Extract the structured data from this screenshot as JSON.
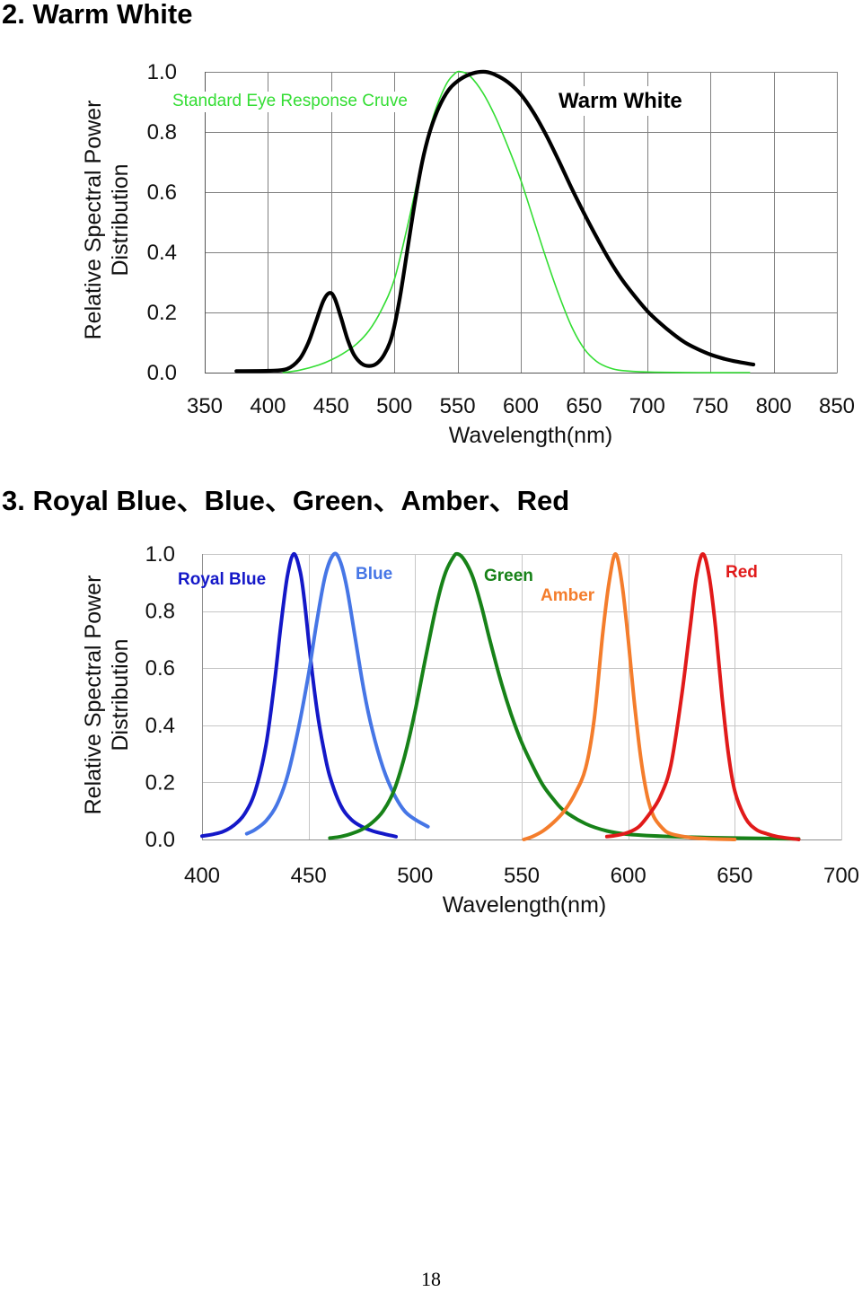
{
  "page": {
    "number": "18"
  },
  "sections": [
    {
      "heading": "2. Warm White"
    },
    {
      "heading": "3. Royal Blue、Blue、Green、Amber、Red"
    }
  ],
  "chart_data": [
    {
      "type": "line",
      "xlabel": "Wavelength(nm)",
      "ylabel": [
        "Relative Spectral Power",
        "Distribution"
      ],
      "xlim": [
        350,
        850
      ],
      "ylim": [
        0,
        1.0
      ],
      "xticks": [
        "350",
        "400",
        "450",
        "500",
        "550",
        "600",
        "650",
        "700",
        "750",
        "800",
        "850"
      ],
      "yticks": [
        "0.0",
        "0.2",
        "0.4",
        "0.6",
        "0.8",
        "1.0"
      ],
      "grid": true,
      "series": [
        {
          "name": "Standard Eye Response Cruve",
          "color": "#33dd33",
          "points": [
            [
              412,
              0
            ],
            [
              425,
              0.008
            ],
            [
              440,
              0.025
            ],
            [
              450,
              0.042
            ],
            [
              460,
              0.065
            ],
            [
              470,
              0.095
            ],
            [
              480,
              0.14
            ],
            [
              490,
              0.21
            ],
            [
              500,
              0.31
            ],
            [
              510,
              0.48
            ],
            [
              520,
              0.67
            ],
            [
              530,
              0.84
            ],
            [
              540,
              0.95
            ],
            [
              548,
              0.995
            ],
            [
              553,
              1.0
            ],
            [
              560,
              0.985
            ],
            [
              570,
              0.93
            ],
            [
              580,
              0.85
            ],
            [
              590,
              0.75
            ],
            [
              600,
              0.64
            ],
            [
              610,
              0.51
            ],
            [
              620,
              0.38
            ],
            [
              630,
              0.26
            ],
            [
              640,
              0.155
            ],
            [
              650,
              0.08
            ],
            [
              660,
              0.037
            ],
            [
              670,
              0.016
            ],
            [
              680,
              0.007
            ],
            [
              700,
              0.002
            ],
            [
              740,
              0
            ],
            [
              781,
              0
            ]
          ]
        },
        {
          "name": "Warm White",
          "color": "#000000",
          "points": [
            [
              375,
              0.005
            ],
            [
              400,
              0.006
            ],
            [
              415,
              0.012
            ],
            [
              425,
              0.045
            ],
            [
              432,
              0.1
            ],
            [
              438,
              0.17
            ],
            [
              444,
              0.24
            ],
            [
              449,
              0.265
            ],
            [
              453,
              0.245
            ],
            [
              458,
              0.18
            ],
            [
              463,
              0.11
            ],
            [
              468,
              0.06
            ],
            [
              474,
              0.03
            ],
            [
              480,
              0.022
            ],
            [
              486,
              0.03
            ],
            [
              492,
              0.06
            ],
            [
              498,
              0.12
            ],
            [
              504,
              0.24
            ],
            [
              510,
              0.4
            ],
            [
              516,
              0.56
            ],
            [
              522,
              0.7
            ],
            [
              528,
              0.8
            ],
            [
              535,
              0.88
            ],
            [
              543,
              0.94
            ],
            [
              552,
              0.975
            ],
            [
              562,
              0.995
            ],
            [
              572,
              1.0
            ],
            [
              580,
              0.99
            ],
            [
              590,
              0.965
            ],
            [
              600,
              0.925
            ],
            [
              610,
              0.865
            ],
            [
              620,
              0.79
            ],
            [
              630,
              0.705
            ],
            [
              640,
              0.615
            ],
            [
              650,
              0.53
            ],
            [
              660,
              0.45
            ],
            [
              670,
              0.375
            ],
            [
              680,
              0.31
            ],
            [
              690,
              0.255
            ],
            [
              700,
              0.205
            ],
            [
              710,
              0.165
            ],
            [
              720,
              0.13
            ],
            [
              730,
              0.1
            ],
            [
              740,
              0.078
            ],
            [
              750,
              0.06
            ],
            [
              760,
              0.047
            ],
            [
              770,
              0.037
            ],
            [
              784,
              0.027
            ]
          ]
        }
      ]
    },
    {
      "type": "line",
      "xlabel": "Wavelength(nm)",
      "ylabel": [
        "Relative Spectral Power",
        "Distribution"
      ],
      "xlim": [
        400,
        700
      ],
      "ylim": [
        0,
        1.0
      ],
      "xticks": [
        "400",
        "450",
        "500",
        "550",
        "600",
        "650",
        "700"
      ],
      "yticks": [
        "0.0",
        "0.2",
        "0.4",
        "0.6",
        "0.8",
        "1.0"
      ],
      "grid": true,
      "series": [
        {
          "name": "Royal Blue",
          "color": "#1418c8",
          "points": [
            [
              400,
              0.012
            ],
            [
              405,
              0.018
            ],
            [
              410,
              0.028
            ],
            [
              415,
              0.05
            ],
            [
              420,
              0.09
            ],
            [
              425,
              0.17
            ],
            [
              430,
              0.33
            ],
            [
              434,
              0.55
            ],
            [
              437,
              0.75
            ],
            [
              440,
              0.92
            ],
            [
              443,
              1.0
            ],
            [
              446,
              0.94
            ],
            [
              448,
              0.84
            ],
            [
              451,
              0.63
            ],
            [
              454,
              0.45
            ],
            [
              457,
              0.32
            ],
            [
              460,
              0.22
            ],
            [
              465,
              0.12
            ],
            [
              470,
              0.07
            ],
            [
              475,
              0.045
            ],
            [
              480,
              0.03
            ],
            [
              485,
              0.02
            ],
            [
              491,
              0.01
            ]
          ]
        },
        {
          "name": "Blue",
          "color": "#4676e6",
          "points": [
            [
              421,
              0.02
            ],
            [
              425,
              0.035
            ],
            [
              430,
              0.065
            ],
            [
              435,
              0.12
            ],
            [
              440,
              0.22
            ],
            [
              445,
              0.38
            ],
            [
              450,
              0.58
            ],
            [
              454,
              0.77
            ],
            [
              458,
              0.93
            ],
            [
              462,
              1.0
            ],
            [
              465,
              0.97
            ],
            [
              468,
              0.88
            ],
            [
              472,
              0.7
            ],
            [
              476,
              0.52
            ],
            [
              480,
              0.38
            ],
            [
              485,
              0.25
            ],
            [
              490,
              0.16
            ],
            [
              495,
              0.1
            ],
            [
              500,
              0.07
            ],
            [
              506,
              0.045
            ]
          ]
        },
        {
          "name": "Green",
          "color": "#178218",
          "points": [
            [
              460,
              0.005
            ],
            [
              465,
              0.01
            ],
            [
              470,
              0.02
            ],
            [
              475,
              0.035
            ],
            [
              480,
              0.06
            ],
            [
              485,
              0.1
            ],
            [
              490,
              0.17
            ],
            [
              495,
              0.29
            ],
            [
              500,
              0.45
            ],
            [
              505,
              0.64
            ],
            [
              510,
              0.82
            ],
            [
              514,
              0.93
            ],
            [
              518,
              0.99
            ],
            [
              520,
              1.0
            ],
            [
              523,
              0.98
            ],
            [
              527,
              0.92
            ],
            [
              531,
              0.82
            ],
            [
              535,
              0.7
            ],
            [
              540,
              0.56
            ],
            [
              545,
              0.44
            ],
            [
              550,
              0.34
            ],
            [
              555,
              0.26
            ],
            [
              560,
              0.19
            ],
            [
              565,
              0.14
            ],
            [
              570,
              0.1
            ],
            [
              580,
              0.055
            ],
            [
              590,
              0.03
            ],
            [
              600,
              0.018
            ],
            [
              620,
              0.01
            ],
            [
              650,
              0.005
            ],
            [
              680,
              0.002
            ]
          ]
        },
        {
          "name": "Amber",
          "color": "#f47d2c",
          "points": [
            [
              551,
              0
            ],
            [
              555,
              0.01
            ],
            [
              560,
              0.03
            ],
            [
              565,
              0.06
            ],
            [
              570,
              0.1
            ],
            [
              575,
              0.16
            ],
            [
              580,
              0.25
            ],
            [
              584,
              0.42
            ],
            [
              588,
              0.72
            ],
            [
              591,
              0.9
            ],
            [
              594,
              1.0
            ],
            [
              597,
              0.9
            ],
            [
              600,
              0.7
            ],
            [
              603,
              0.47
            ],
            [
              606,
              0.28
            ],
            [
              609,
              0.15
            ],
            [
              612,
              0.08
            ],
            [
              616,
              0.04
            ],
            [
              620,
              0.02
            ],
            [
              630,
              0.006
            ],
            [
              640,
              0.002
            ],
            [
              650,
              0
            ]
          ]
        },
        {
          "name": "Red",
          "color": "#e11a1a",
          "points": [
            [
              590,
              0.01
            ],
            [
              595,
              0.015
            ],
            [
              600,
              0.025
            ],
            [
              605,
              0.045
            ],
            [
              610,
              0.09
            ],
            [
              615,
              0.15
            ],
            [
              620,
              0.26
            ],
            [
              625,
              0.5
            ],
            [
              629,
              0.74
            ],
            [
              632,
              0.92
            ],
            [
              635,
              1.0
            ],
            [
              638,
              0.92
            ],
            [
              641,
              0.74
            ],
            [
              644,
              0.5
            ],
            [
              647,
              0.3
            ],
            [
              650,
              0.17
            ],
            [
              655,
              0.075
            ],
            [
              660,
              0.035
            ],
            [
              665,
              0.02
            ],
            [
              670,
              0.01
            ],
            [
              680,
              0
            ]
          ]
        }
      ]
    }
  ]
}
